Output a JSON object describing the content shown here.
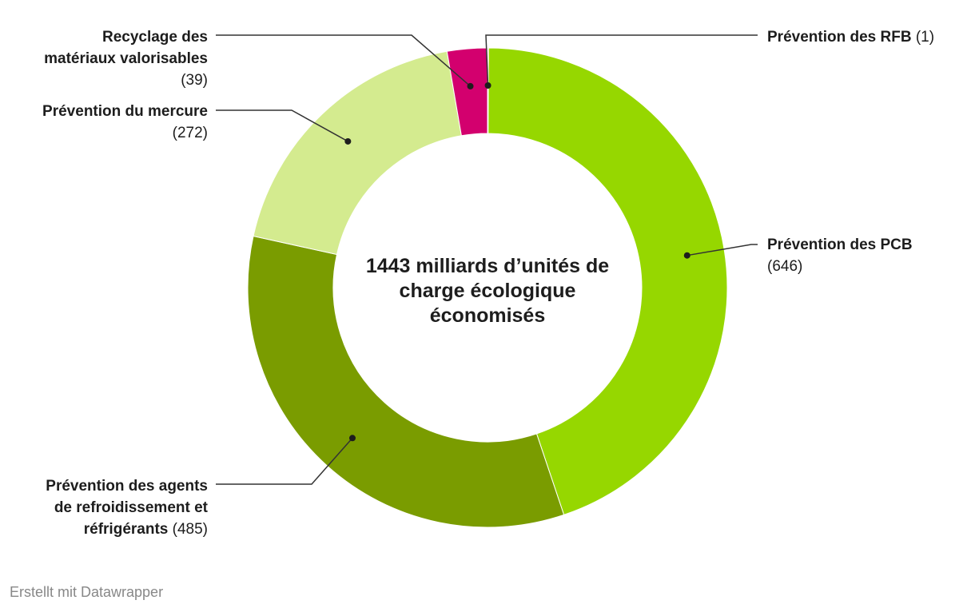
{
  "chart_data": {
    "type": "pie",
    "donut": true,
    "center_label": [
      "1443 milliards d’unités de",
      "charge écologique",
      "économisés"
    ],
    "slices": [
      {
        "name": "Prévention des RFB",
        "value": 1,
        "color": "#d3006e",
        "label_lines": [
          [
            "Prévention des RFB",
            ""
          ]
        ],
        "value_text": "(1)"
      },
      {
        "name": "Prévention des PCB",
        "value": 646,
        "color": "#96d700",
        "label_lines": [
          [
            "Prévention des PCB",
            ""
          ]
        ],
        "value_text": "(646)"
      },
      {
        "name": "Prévention des agents de refroidissement et réfrigérants",
        "value": 485,
        "color": "#7a9c00",
        "label_lines": [
          [
            "Prévention des agents",
            ""
          ],
          [
            "de refroidissement et",
            ""
          ],
          [
            "réfrigérants",
            ""
          ]
        ],
        "value_text": "(485)"
      },
      {
        "name": "Prévention du mercure",
        "value": 272,
        "color": "#d4eb8f",
        "label_lines": [
          [
            "Prévention du mercure",
            ""
          ]
        ],
        "value_text": "(272)"
      },
      {
        "name": "Recyclage des matériaux valorisables",
        "value": 39,
        "color": "#d3006e",
        "label_lines": [
          [
            "Recyclage des",
            ""
          ],
          [
            "matériaux valorisables",
            ""
          ]
        ],
        "value_text": "(39)"
      }
    ]
  },
  "footer": "Erstellt mit Datawrapper"
}
